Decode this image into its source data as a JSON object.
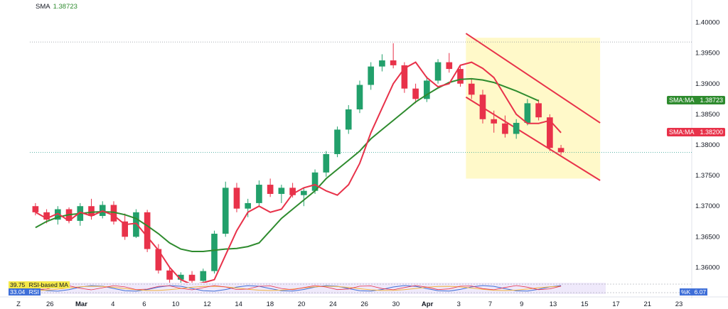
{
  "legend": {
    "label": "SMA",
    "value": "1.38723"
  },
  "price_badges": [
    {
      "label": "SMA:MA",
      "value": "1.38723",
      "price": 1.38723,
      "color": "#2e8b2e"
    },
    {
      "label": "SMA:MA",
      "value": "1.38200",
      "price": 1.382,
      "color": "#e8324a"
    }
  ],
  "indicator_labels": [
    {
      "value": "39.75",
      "label": "RSI-based MA",
      "bg": "#f5e94a",
      "fg": "#131722"
    },
    {
      "value": "33.04",
      "label": "RSI",
      "bg": "#3f6fd8",
      "fg": "#ffffff"
    }
  ],
  "stoch_label": {
    "label": "%K",
    "value": "6.07"
  },
  "colors": {
    "up": "#22a06b",
    "down": "#e8324a",
    "sma_fast": "#e8324a",
    "sma_slow": "#2e8b2e",
    "channel": "#e8324a",
    "channel_fill": "#fff9c9"
  },
  "chart_data": {
    "type": "candlestick",
    "ylim": [
      1.3575,
      1.4025
    ],
    "y_ticks": [
      1.36,
      1.365,
      1.37,
      1.375,
      1.38,
      1.385,
      1.39,
      1.395,
      1.4
    ],
    "y_tick_labels": [
      "1.36000",
      "1.36500",
      "1.37000",
      "1.37500",
      "1.38000",
      "1.38500",
      "1.39000",
      "1.39500",
      "1.40000"
    ],
    "x_tick_labels": [
      "Z",
      "26",
      "Mar",
      "4",
      "6",
      "10",
      "12",
      "14",
      "18",
      "20",
      "24",
      "26",
      "30",
      "Apr",
      "3",
      "7",
      "9",
      "13",
      "15",
      "17",
      "21",
      "23"
    ],
    "high_line": 1.3968,
    "current_price_line": 1.3788,
    "sma_fast": [
      [
        0,
        1.369
      ],
      [
        1,
        1.368
      ],
      [
        2,
        1.3688
      ],
      [
        3,
        1.3676
      ],
      [
        4,
        1.369
      ],
      [
        5,
        1.3684
      ],
      [
        6,
        1.3692
      ],
      [
        7,
        1.3685
      ],
      [
        8,
        1.367
      ],
      [
        9,
        1.3672
      ],
      [
        10,
        1.365
      ],
      [
        11,
        1.3628
      ],
      [
        12,
        1.36
      ],
      [
        13,
        1.358
      ],
      [
        14,
        1.3572
      ],
      [
        15,
        1.3575
      ],
      [
        16,
        1.358
      ],
      [
        17,
        1.362
      ],
      [
        18,
        1.366
      ],
      [
        19,
        1.369
      ],
      [
        20,
        1.37
      ],
      [
        21,
        1.369
      ],
      [
        22,
        1.3695
      ],
      [
        23,
        1.372
      ],
      [
        24,
        1.373
      ],
      [
        25,
        1.3735
      ],
      [
        26,
        1.3725
      ],
      [
        27,
        1.3718
      ],
      [
        28,
        1.3735
      ],
      [
        29,
        1.377
      ],
      [
        30,
        1.382
      ],
      [
        31,
        1.386
      ],
      [
        32,
        1.39
      ],
      [
        33,
        1.3925
      ],
      [
        34,
        1.3935
      ],
      [
        35,
        1.391
      ],
      [
        36,
        1.3895
      ],
      [
        37,
        1.39
      ],
      [
        38,
        1.393
      ],
      [
        39,
        1.3935
      ],
      [
        40,
        1.3925
      ],
      [
        41,
        1.391
      ],
      [
        42,
        1.388
      ],
      [
        43,
        1.385
      ],
      [
        44,
        1.3835
      ],
      [
        45,
        1.3835
      ],
      [
        46,
        1.384
      ],
      [
        47,
        1.382
      ]
    ],
    "sma_slow": [
      [
        0,
        1.3665
      ],
      [
        1,
        1.3675
      ],
      [
        2,
        1.3682
      ],
      [
        3,
        1.3686
      ],
      [
        4,
        1.3688
      ],
      [
        5,
        1.369
      ],
      [
        6,
        1.3691
      ],
      [
        7,
        1.369
      ],
      [
        8,
        1.3686
      ],
      [
        9,
        1.368
      ],
      [
        10,
        1.3668
      ],
      [
        11,
        1.3655
      ],
      [
        12,
        1.364
      ],
      [
        13,
        1.363
      ],
      [
        14,
        1.3626
      ],
      [
        15,
        1.3626
      ],
      [
        16,
        1.3628
      ],
      [
        17,
        1.363
      ],
      [
        18,
        1.3631
      ],
      [
        19,
        1.3634
      ],
      [
        20,
        1.364
      ],
      [
        21,
        1.366
      ],
      [
        22,
        1.368
      ],
      [
        23,
        1.3695
      ],
      [
        24,
        1.371
      ],
      [
        25,
        1.3725
      ],
      [
        26,
        1.3745
      ],
      [
        27,
        1.376
      ],
      [
        28,
        1.3775
      ],
      [
        29,
        1.379
      ],
      [
        30,
        1.381
      ],
      [
        31,
        1.3825
      ],
      [
        32,
        1.384
      ],
      [
        33,
        1.3855
      ],
      [
        34,
        1.387
      ],
      [
        35,
        1.3882
      ],
      [
        36,
        1.3893
      ],
      [
        37,
        1.3902
      ],
      [
        38,
        1.3907
      ],
      [
        39,
        1.3908
      ],
      [
        40,
        1.3906
      ],
      [
        41,
        1.3902
      ],
      [
        42,
        1.3895
      ],
      [
        43,
        1.3888
      ],
      [
        44,
        1.388
      ],
      [
        45,
        1.3872
      ]
    ],
    "channel": {
      "upper": [
        [
          38.5,
          1.3982
        ],
        [
          50.5,
          1.3836
        ]
      ],
      "lower": [
        [
          38.5,
          1.3878
        ],
        [
          50.5,
          1.3742
        ]
      ]
    },
    "candles": [
      [
        1.37,
        1.3705,
        1.3685,
        1.369
      ],
      [
        1.369,
        1.3695,
        1.3672,
        1.3678
      ],
      [
        1.3678,
        1.37,
        1.367,
        1.3695
      ],
      [
        1.3695,
        1.3698,
        1.3672,
        1.3676
      ],
      [
        1.3676,
        1.3705,
        1.3668,
        1.37
      ],
      [
        1.37,
        1.3712,
        1.3678,
        1.3684
      ],
      [
        1.3684,
        1.3708,
        1.368,
        1.3702
      ],
      [
        1.3702,
        1.3708,
        1.367,
        1.3675
      ],
      [
        1.3675,
        1.3688,
        1.3645,
        1.365
      ],
      [
        1.365,
        1.3695,
        1.3648,
        1.369
      ],
      [
        1.369,
        1.3694,
        1.3625,
        1.363
      ],
      [
        1.363,
        1.3638,
        1.359,
        1.3595
      ],
      [
        1.3595,
        1.36,
        1.3575,
        1.358
      ],
      [
        1.358,
        1.3592,
        1.3574,
        1.3588
      ],
      [
        1.3588,
        1.3594,
        1.3572,
        1.3578
      ],
      [
        1.3578,
        1.3598,
        1.3576,
        1.3594
      ],
      [
        1.3594,
        1.366,
        1.359,
        1.3655
      ],
      [
        1.3655,
        1.374,
        1.365,
        1.373
      ],
      [
        1.373,
        1.3738,
        1.369,
        1.3696
      ],
      [
        1.3696,
        1.3712,
        1.3682,
        1.3705
      ],
      [
        1.3705,
        1.3742,
        1.37,
        1.3735
      ],
      [
        1.3735,
        1.3745,
        1.3715,
        1.372
      ],
      [
        1.372,
        1.3735,
        1.3705,
        1.373
      ],
      [
        1.373,
        1.3738,
        1.3714,
        1.3718
      ],
      [
        1.3718,
        1.373,
        1.37,
        1.3725
      ],
      [
        1.3725,
        1.376,
        1.372,
        1.3755
      ],
      [
        1.3755,
        1.379,
        1.3748,
        1.3785
      ],
      [
        1.3785,
        1.383,
        1.378,
        1.3825
      ],
      [
        1.3825,
        1.3865,
        1.3818,
        1.3858
      ],
      [
        1.3858,
        1.3905,
        1.3852,
        1.3898
      ],
      [
        1.3898,
        1.3935,
        1.389,
        1.3928
      ],
      [
        1.3928,
        1.3948,
        1.392,
        1.3938
      ],
      [
        1.3938,
        1.3966,
        1.3925,
        1.393
      ],
      [
        1.393,
        1.3935,
        1.3885,
        1.3892
      ],
      [
        1.3892,
        1.39,
        1.3868,
        1.3875
      ],
      [
        1.3875,
        1.3912,
        1.387,
        1.3905
      ],
      [
        1.3905,
        1.394,
        1.39,
        1.3935
      ],
      [
        1.3935,
        1.395,
        1.3918,
        1.3924
      ],
      [
        1.3924,
        1.393,
        1.3895,
        1.39
      ],
      [
        1.39,
        1.3908,
        1.3875,
        1.3882
      ],
      [
        1.3882,
        1.389,
        1.3835,
        1.3842
      ],
      [
        1.3842,
        1.3856,
        1.382,
        1.3835
      ],
      [
        1.3835,
        1.3848,
        1.3812,
        1.3818
      ],
      [
        1.3818,
        1.3842,
        1.381,
        1.3836
      ],
      [
        1.3836,
        1.3875,
        1.3832,
        1.3868
      ],
      [
        1.3868,
        1.3874,
        1.384,
        1.3845
      ],
      [
        1.3845,
        1.385,
        1.379,
        1.3795
      ],
      [
        1.3795,
        1.38,
        1.3784,
        1.3788
      ]
    ]
  }
}
